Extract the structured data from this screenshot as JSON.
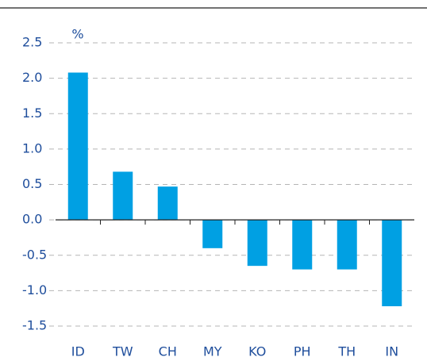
{
  "chart_data": {
    "type": "bar",
    "unit_label": "%",
    "categories": [
      "ID",
      "TW",
      "CH",
      "MY",
      "KO",
      "PH",
      "TH",
      "IN"
    ],
    "values": [
      2.08,
      0.68,
      0.47,
      -0.4,
      -0.65,
      -0.7,
      -0.7,
      -1.22
    ],
    "color": "#00a0e3",
    "ylim": [
      -1.5,
      2.5
    ],
    "yticks": [
      -1.5,
      {
        "value": -1.0,
        "label": "-1.0"
      },
      -0.5,
      {
        "value": 0.0,
        "label": "0.0"
      },
      0.5,
      {
        "value": 1.0,
        "label": "1.0"
      },
      1.5,
      {
        "value": 2.0,
        "label": "2.0"
      },
      2.5
    ],
    "grid": true
  }
}
